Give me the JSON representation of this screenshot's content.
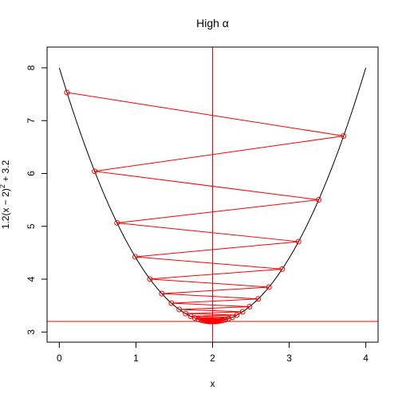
{
  "chart_data": {
    "type": "line",
    "title": "High α",
    "xlabel": "x",
    "ylabel": {
      "prefix": "1.2(x − 2)",
      "superscript": "2",
      "suffix": " + 3.2"
    },
    "xlim": [
      -0.16,
      4.16
    ],
    "ylim": [
      2.808,
      8.392
    ],
    "x_ticks": [
      0,
      1,
      2,
      3,
      4
    ],
    "y_ticks": [
      3,
      4,
      5,
      6,
      7,
      8
    ],
    "grid": false,
    "curve": {
      "expression": "1.2(x − 2)^2 + 3.2",
      "x_range": [
        0,
        4
      ],
      "color": "#000000"
    },
    "minimum": {
      "x": 2,
      "y": 3.2,
      "color": "#ff0000"
    },
    "descent_path": {
      "color": "#ff0000",
      "marker": "open-circle",
      "x_start": 0.1,
      "step_factor": -0.9,
      "count": 60
    }
  }
}
